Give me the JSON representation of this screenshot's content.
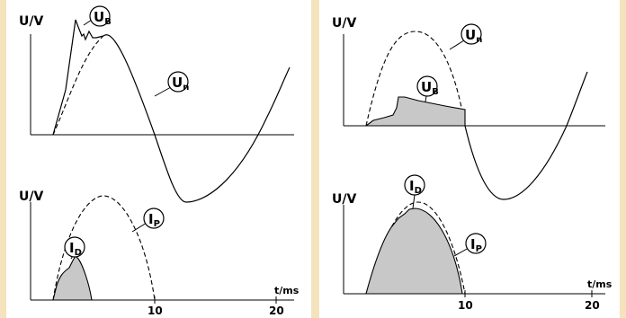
{
  "left": {
    "top_ylabel": "U/V",
    "bottom_ylabel": "U/V",
    "bubbles": {
      "ub": {
        "main": "U",
        "sub": "B"
      },
      "un": {
        "main": "U",
        "sub": "n"
      },
      "id": {
        "main": "I",
        "sub": "D"
      },
      "ip": {
        "main": "I",
        "sub": "P"
      }
    },
    "x_unit": "t/ms",
    "ticks": [
      "10",
      "20"
    ]
  },
  "right": {
    "top_ylabel": "U/V",
    "bottom_ylabel": "U/V",
    "bubbles": {
      "ub": {
        "main": "U",
        "sub": "B"
      },
      "un": {
        "main": "U",
        "sub": "n"
      },
      "id": {
        "main": "I",
        "sub": "D"
      },
      "ip": {
        "main": "I",
        "sub": "P"
      }
    },
    "x_unit": "t/ms",
    "ticks": [
      "10",
      "20"
    ]
  },
  "colors": {
    "background": "#f5e3bd",
    "panel": "#ffffff",
    "fill": "#c8c8c8",
    "stroke": "#000000"
  }
}
